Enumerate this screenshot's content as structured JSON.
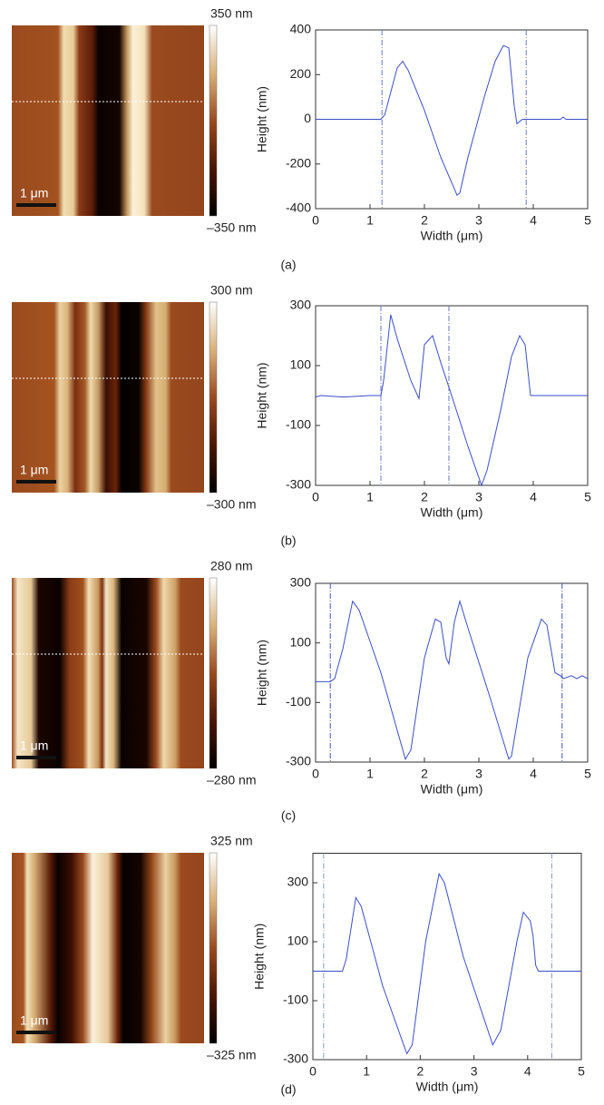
{
  "chart_data": [
    {
      "type": "line",
      "panel_label": "(a)",
      "scale_bar_label": "1 μm",
      "colorbar_max_label": "350 nm",
      "colorbar_min_label": "–350 nm",
      "profile_line": true,
      "x_label": "Width (μm)",
      "y_label": "Height (nm)",
      "x": [
        0,
        1.2,
        1.27,
        1.5,
        1.6,
        1.7,
        2.0,
        2.3,
        2.6,
        2.65,
        2.8,
        3.1,
        3.3,
        3.45,
        3.55,
        3.65,
        3.7,
        3.8,
        4.5,
        4.55,
        4.6,
        5.0
      ],
      "series": [
        {
          "color": "#3a4fc8",
          "values": [
            0,
            0,
            20,
            230,
            260,
            220,
            40,
            -170,
            -340,
            -330,
            -170,
            100,
            260,
            330,
            320,
            60,
            -20,
            0,
            0,
            10,
            0,
            0
          ]
        }
      ],
      "markers": [
        1.22,
        3.87
      ],
      "marker_color": "#6677cc",
      "xlim": [
        0,
        5
      ],
      "ylim": [
        -400,
        400
      ],
      "xticks": [
        0,
        1,
        2,
        3,
        4,
        5
      ],
      "yticks": [
        -400,
        -200,
        0,
        200,
        400
      ]
    },
    {
      "type": "line",
      "panel_label": "(b)",
      "scale_bar_label": "1 μm",
      "colorbar_max_label": "300 nm",
      "colorbar_min_label": "–300 nm",
      "profile_line": true,
      "x_label": "Width (μm)",
      "y_label": "Height (nm)",
      "x": [
        0,
        0.1,
        0.5,
        1.0,
        1.2,
        1.25,
        1.38,
        1.5,
        1.75,
        1.9,
        2.0,
        2.15,
        2.3,
        2.5,
        2.8,
        3.05,
        3.15,
        3.4,
        3.6,
        3.75,
        3.85,
        3.95,
        4.0,
        5.0
      ],
      "series": [
        {
          "color": "#3a4fc8",
          "values": [
            -5,
            0,
            -5,
            0,
            0,
            50,
            270,
            190,
            50,
            -10,
            170,
            200,
            110,
            0,
            -170,
            -300,
            -250,
            -50,
            130,
            200,
            170,
            0,
            0,
            0
          ]
        }
      ],
      "markers": [
        1.2,
        2.45
      ],
      "marker_color": "#6677cc",
      "xlim": [
        0,
        5
      ],
      "ylim": [
        -300,
        300
      ],
      "xticks": [
        0,
        1,
        2,
        3,
        4,
        5
      ],
      "yticks": [
        -300,
        -100,
        100,
        300
      ]
    },
    {
      "type": "line",
      "panel_label": "(c)",
      "scale_bar_label": "1 μm",
      "colorbar_max_label": "280 nm",
      "colorbar_min_label": "–280 nm",
      "profile_line": true,
      "x_label": "Width (μm)",
      "y_label": "Height (nm)",
      "x": [
        0,
        0.27,
        0.35,
        0.5,
        0.68,
        0.8,
        1.2,
        1.65,
        1.75,
        2.0,
        2.2,
        2.3,
        2.4,
        2.45,
        2.55,
        2.65,
        2.8,
        3.2,
        3.55,
        3.6,
        3.9,
        4.15,
        4.25,
        4.4,
        4.5,
        4.55,
        4.7,
        4.8,
        4.9,
        5.0
      ],
      "series": [
        {
          "color": "#3a4fc8",
          "values": [
            -30,
            -30,
            -20,
            80,
            240,
            210,
            0,
            -290,
            -260,
            50,
            180,
            170,
            50,
            30,
            170,
            240,
            150,
            -80,
            -290,
            -280,
            50,
            180,
            160,
            0,
            -10,
            -20,
            -10,
            -20,
            -10,
            -20
          ]
        }
      ],
      "markers": [
        0.27,
        4.53
      ],
      "marker_color": "#3a4fc8",
      "xlim": [
        0,
        5
      ],
      "ylim": [
        -300,
        300
      ],
      "xticks": [
        0,
        1,
        2,
        3,
        4,
        5
      ],
      "yticks": [
        -300,
        -100,
        100,
        300
      ]
    },
    {
      "type": "line",
      "panel_label": "(d)",
      "scale_bar_label": "1 μm",
      "colorbar_max_label": "325 nm",
      "colorbar_min_label": "–325 nm",
      "profile_line": false,
      "x_label": "Width (μm)",
      "y_label": "Height (nm)",
      "x": [
        0,
        0.55,
        0.62,
        0.8,
        0.9,
        1.3,
        1.75,
        1.85,
        2.1,
        2.35,
        2.45,
        2.8,
        3.35,
        3.5,
        3.8,
        3.92,
        4.05,
        4.1,
        4.15,
        4.2,
        4.4,
        5.0
      ],
      "series": [
        {
          "color": "#3a4fc8",
          "values": [
            0,
            0,
            40,
            250,
            220,
            -50,
            -280,
            -250,
            100,
            330,
            300,
            50,
            -250,
            -200,
            100,
            200,
            170,
            120,
            20,
            0,
            0,
            0
          ]
        }
      ],
      "markers": [
        0.2,
        4.45
      ],
      "marker_color": "#8899cc",
      "xlim": [
        0,
        5
      ],
      "ylim": [
        -300,
        400
      ],
      "xticks": [
        0,
        1,
        2,
        3,
        4,
        5
      ],
      "yticks": [
        -300,
        -100,
        100,
        300
      ]
    }
  ]
}
